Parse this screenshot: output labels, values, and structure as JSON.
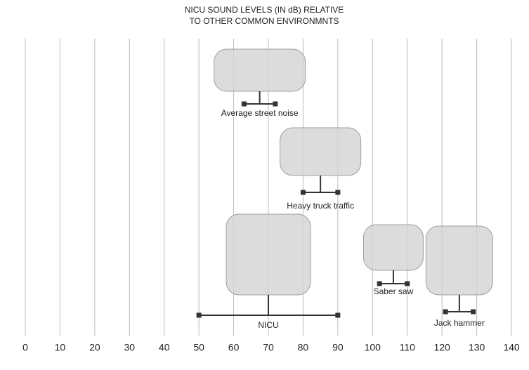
{
  "chart_data": {
    "type": "range",
    "title": [
      "NICU SOUND LEVELS (IN dB) RELATIVE",
      "TO OTHER COMMON ENVIRONMNTS"
    ],
    "categories": [
      "Average street noise",
      "Heavy truck traffic",
      "NICU",
      "Saber saw",
      "Jack hammer"
    ],
    "low": [
      63,
      80,
      50,
      102,
      121
    ],
    "high": [
      72,
      90,
      90,
      110,
      129
    ],
    "color": "#333333",
    "xlim": [
      0,
      140
    ],
    "xticks": [
      0,
      10,
      20,
      30,
      40,
      50,
      60,
      70,
      80,
      90,
      100,
      110,
      120,
      130,
      140
    ],
    "grid": true
  }
}
